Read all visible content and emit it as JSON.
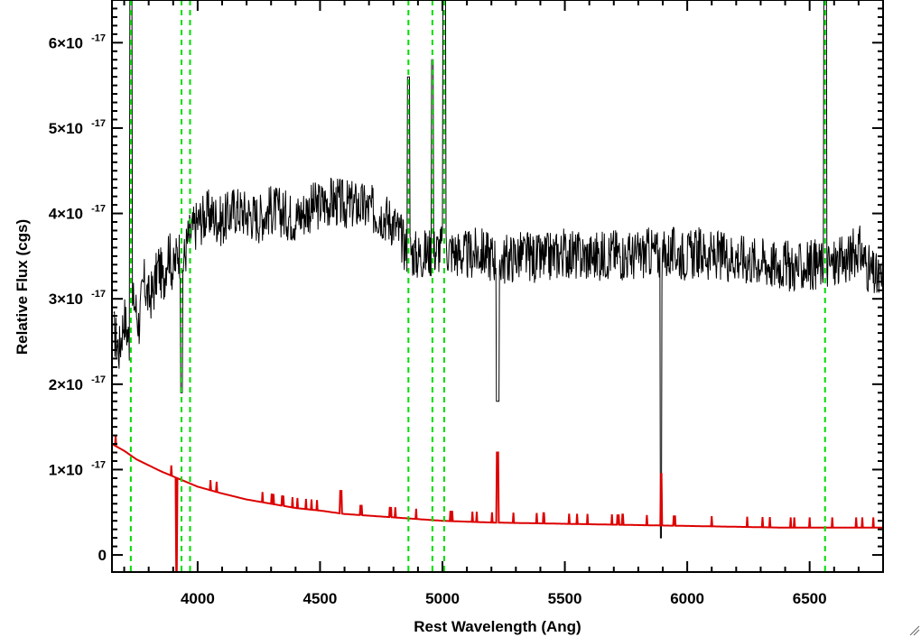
{
  "chart_data": {
    "type": "line",
    "title": "",
    "xlabel": "Rest Wavelength (Ang)",
    "ylabel": "Relative Flux (cgs)",
    "xlim": [
      3650,
      6800
    ],
    "ylim": [
      -2e-18,
      6.5e-17
    ],
    "x_ticks": [
      4000,
      4500,
      5000,
      5500,
      6000,
      6500
    ],
    "x_tick_labels": [
      "4000",
      "4500",
      "5000",
      "5500",
      "6000",
      "6500"
    ],
    "y_ticks": [
      {
        "value": 0,
        "mantissa": "0",
        "exponent": ""
      },
      {
        "value": 1e-17,
        "mantissa": "1×10",
        "exponent": "-17"
      },
      {
        "value": 2e-17,
        "mantissa": "2×10",
        "exponent": "-17"
      },
      {
        "value": 3e-17,
        "mantissa": "3×10",
        "exponent": "-17"
      },
      {
        "value": 4e-17,
        "mantissa": "4×10",
        "exponent": "-17"
      },
      {
        "value": 5e-17,
        "mantissa": "5×10",
        "exponent": "-17"
      },
      {
        "value": 6e-17,
        "mantissa": "6×10",
        "exponent": "-17"
      }
    ],
    "grid": false,
    "colors": {
      "spectrum": "#000000",
      "error": "#dd0000",
      "lines": "#00dd00"
    },
    "emission_line_markers": [
      3727,
      3934,
      3969,
      4861,
      4959,
      5007,
      6563
    ],
    "series": [
      {
        "color": "#000000",
        "x": [
          3660,
          3680,
          3700,
          3720,
          3740,
          3760,
          3780,
          3800,
          3820,
          3840,
          3860,
          3880,
          3900,
          3920,
          3940,
          3960,
          3980,
          4000,
          4050,
          4100,
          4150,
          4200,
          4250,
          4300,
          4350,
          4400,
          4450,
          4500,
          4550,
          4600,
          4650,
          4700,
          4750,
          4800,
          4850,
          4900,
          4950,
          5000,
          5050,
          5100,
          5150,
          5200,
          5250,
          5300,
          5350,
          5400,
          5450,
          5500,
          5550,
          5600,
          5650,
          5700,
          5750,
          5800,
          5850,
          5900,
          5950,
          6000,
          6050,
          6100,
          6150,
          6200,
          6250,
          6300,
          6350,
          6400,
          6450,
          6500,
          6550,
          6600,
          6650,
          6700,
          6750,
          6790
        ],
        "y": [
          2.6e-17,
          2.4e-17,
          2.8e-17,
          2.5e-17,
          3e-17,
          2.7e-17,
          3.2e-17,
          3e-17,
          3.1e-17,
          3.4e-17,
          3.2e-17,
          3.6e-17,
          3.3e-17,
          3.6e-17,
          3.4e-17,
          3.7e-17,
          3.8e-17,
          3.9e-17,
          4e-17,
          3.9e-17,
          4.05e-17,
          4e-17,
          3.95e-17,
          4.05e-17,
          4e-17,
          3.95e-17,
          4.05e-17,
          4.1e-17,
          4.15e-17,
          4.1e-17,
          4.1e-17,
          4.05e-17,
          4e-17,
          3.9e-17,
          3.6e-17,
          3.5e-17,
          3.55e-17,
          3.6e-17,
          3.55e-17,
          3.5e-17,
          3.55e-17,
          3.5e-17,
          3.45e-17,
          3.5e-17,
          3.5e-17,
          3.45e-17,
          3.5e-17,
          3.55e-17,
          3.5e-17,
          3.5e-17,
          3.5e-17,
          3.55e-17,
          3.5e-17,
          3.5e-17,
          3.55e-17,
          3.5e-17,
          3.55e-17,
          3.5e-17,
          3.55e-17,
          3.5e-17,
          3.5e-17,
          3.5e-17,
          3.45e-17,
          3.45e-17,
          3.4e-17,
          3.4e-17,
          3.35e-17,
          3.4e-17,
          3.4e-17,
          3.4e-17,
          3.45e-17,
          3.6e-17,
          3.3e-17,
          3.2e-17
        ]
      },
      {
        "color": "#dd0000",
        "x": [
          3650,
          3700,
          3750,
          3800,
          3850,
          3900,
          3950,
          4000,
          4100,
          4200,
          4300,
          4400,
          4500,
          4600,
          4700,
          4800,
          4900,
          5000,
          5200,
          5400,
          5600,
          5800,
          6000,
          6200,
          6400,
          6600,
          6790
        ],
        "y": [
          1.3e-17,
          1.22e-17,
          1.12e-17,
          1.05e-17,
          9.8e-18,
          9.2e-18,
          8.6e-18,
          8e-18,
          7.2e-18,
          6.5e-18,
          6e-18,
          5.5e-18,
          5.2e-18,
          4.8e-18,
          4.6e-18,
          4.4e-18,
          4.2e-18,
          4e-18,
          3.8e-18,
          3.7e-18,
          3.6e-18,
          3.5e-18,
          3.4e-18,
          3.3e-18,
          3.2e-18,
          3.2e-18,
          3.2e-18
        ]
      }
    ]
  }
}
